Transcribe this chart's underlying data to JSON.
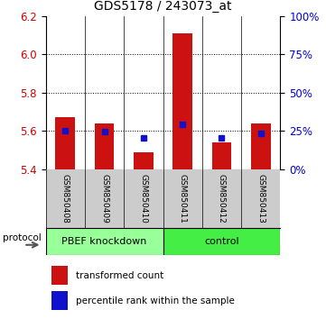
{
  "title": "GDS5178 / 243073_at",
  "samples": [
    "GSM850408",
    "GSM850409",
    "GSM850410",
    "GSM850411",
    "GSM850412",
    "GSM850413"
  ],
  "red_values": [
    5.67,
    5.64,
    5.49,
    6.11,
    5.54,
    5.64
  ],
  "blue_values": [
    5.6,
    5.595,
    5.565,
    5.635,
    5.565,
    5.585
  ],
  "y_min": 5.4,
  "y_max": 6.2,
  "y_ticks_left": [
    5.4,
    5.6,
    5.8,
    6.0,
    6.2
  ],
  "y_ticks_right": [
    0,
    25,
    50,
    75,
    100
  ],
  "groups": [
    {
      "label": "PBEF knockdown",
      "indices": [
        0,
        1,
        2
      ],
      "color": "#99ff99"
    },
    {
      "label": "control",
      "indices": [
        3,
        4,
        5
      ],
      "color": "#44ee44"
    }
  ],
  "protocol_label": "protocol",
  "bar_color_red": "#cc1111",
  "bar_color_blue": "#1111cc",
  "bar_width": 0.5,
  "blue_marker_size": 5,
  "legend_red": "transformed count",
  "legend_blue": "percentile rank within the sample",
  "tick_label_color_left": "#cc0000",
  "tick_label_color_right": "#0000cc",
  "label_area_color": "#cccccc",
  "fig_width": 3.61,
  "fig_height": 3.54
}
